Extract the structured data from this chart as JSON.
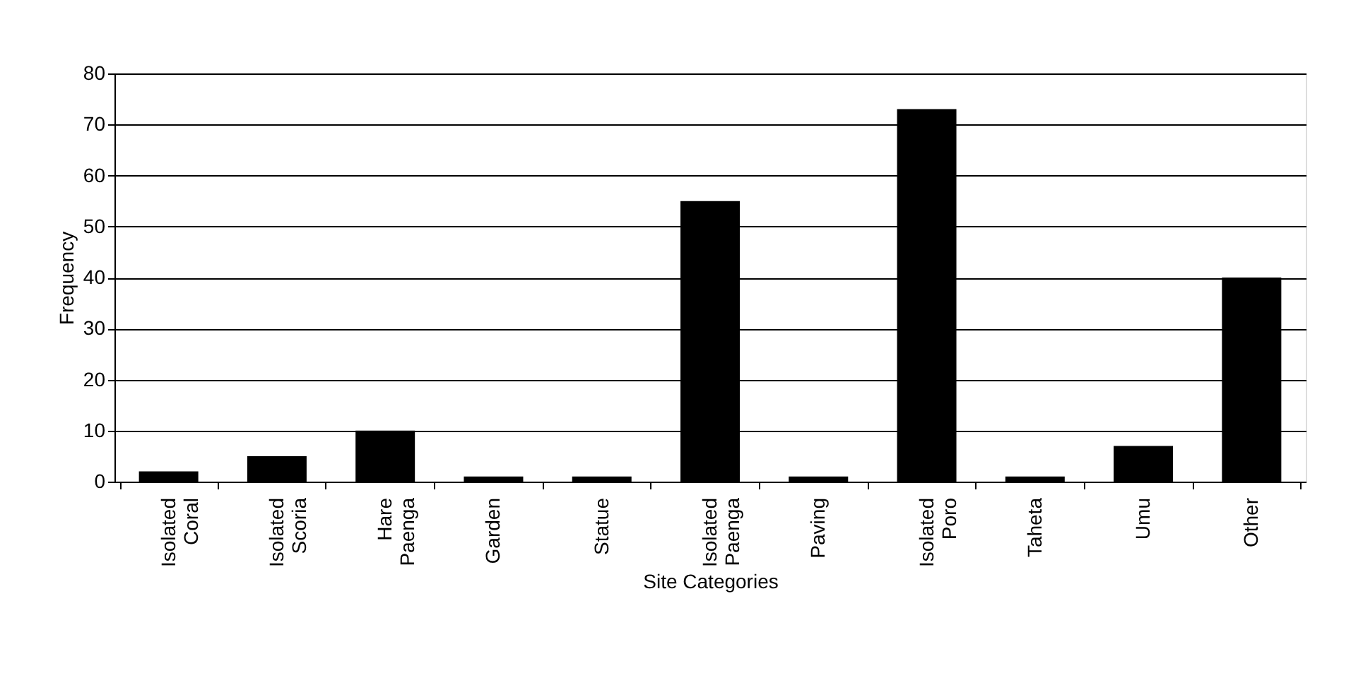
{
  "chart_data": {
    "type": "bar",
    "xlabel": "Site Categories",
    "ylabel": "Frequency",
    "categories": [
      "Isolated Coral",
      "Isolated Scoria",
      "Hare Paenga",
      "Garden",
      "Statue",
      "Isolated Paenga",
      "Paving",
      "Isolated Poro",
      "Taheta",
      "Umu",
      "Other"
    ],
    "values": [
      2,
      5,
      10,
      1,
      1,
      55,
      1,
      73,
      1,
      7,
      40
    ],
    "color": "#000000",
    "ylim": [
      0,
      80
    ],
    "yticks": [
      0,
      10,
      20,
      30,
      40,
      50,
      60,
      70,
      80
    ],
    "grid": "y"
  }
}
